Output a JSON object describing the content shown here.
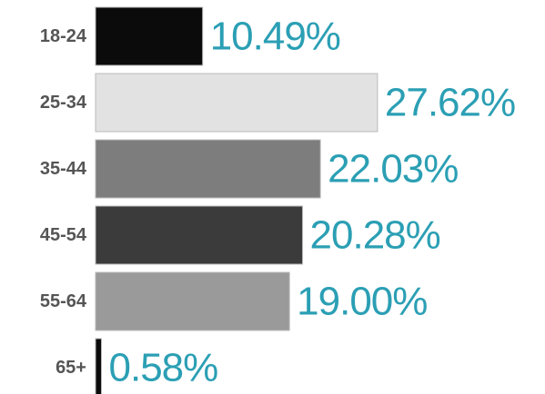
{
  "chart_data": {
    "type": "bar",
    "orientation": "horizontal",
    "categories": [
      "18-24",
      "25-34",
      "35-44",
      "45-54",
      "55-64",
      "65+"
    ],
    "values": [
      10.49,
      27.62,
      22.03,
      20.28,
      19.0,
      0.58
    ],
    "value_labels": [
      "10.49%",
      "27.62%",
      "22.03%",
      "20.28%",
      "19.00%",
      "0.58%"
    ],
    "colors": [
      "#0b0b0b",
      "#e2e2e2",
      "#7d7d7d",
      "#3b3b3b",
      "#9a9a9a",
      "#0b0b0b"
    ],
    "label_color": "#2b9fb4"
  }
}
